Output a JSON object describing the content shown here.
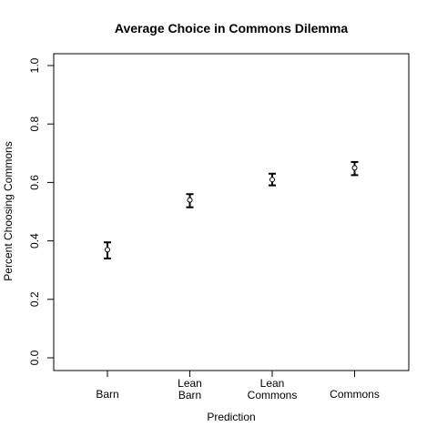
{
  "chart_data": {
    "type": "scatter",
    "title": "Average Choice in Commons Dilemma",
    "xlabel": "Prediction",
    "ylabel": "Percent Choosing Commons",
    "categories": [
      [
        "Barn"
      ],
      [
        "Lean",
        "Barn"
      ],
      [
        "Lean",
        "Commons"
      ],
      [
        "Commons"
      ]
    ],
    "values": [
      0.37,
      0.54,
      0.61,
      0.65
    ],
    "error_low": [
      0.34,
      0.515,
      0.59,
      0.625
    ],
    "error_high": [
      0.395,
      0.56,
      0.63,
      0.67
    ],
    "ylim": [
      0,
      1
    ],
    "yticks": [
      "0.0",
      "0.2",
      "0.4",
      "0.6",
      "0.8",
      "1.0"
    ],
    "ytick_values": [
      0,
      0.2,
      0.4,
      0.6,
      0.8,
      1.0
    ],
    "grid": false,
    "legend": "none"
  }
}
